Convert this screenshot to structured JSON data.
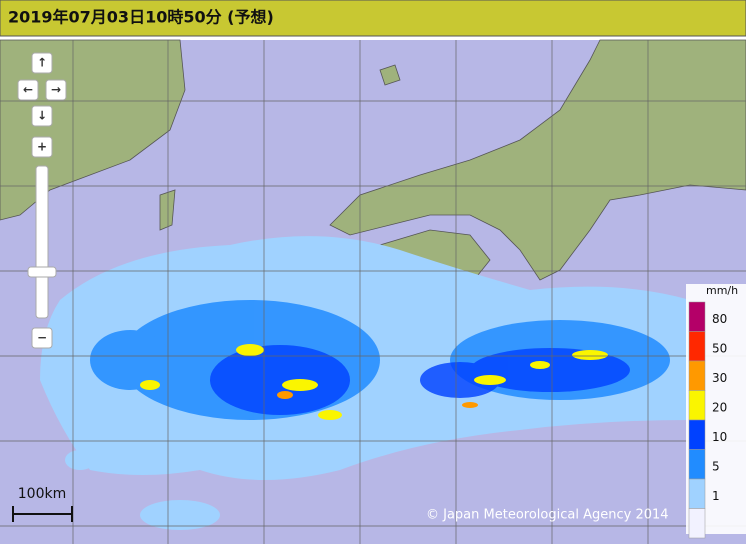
{
  "header": {
    "title": "2019年07月03日10時50分 (予想)"
  },
  "controls": {
    "up": "↑",
    "left": "←",
    "right": "→",
    "down": "↓",
    "zoom_in": "+",
    "zoom_out": "−"
  },
  "legend": {
    "unit": "mm/h",
    "labels": [
      "80",
      "50",
      "30",
      "20",
      "10",
      "5",
      "1"
    ],
    "colors": [
      "#b40068",
      "#ff2800",
      "#ff9900",
      "#faf500",
      "#0041ff",
      "#218cff",
      "#a0d2ff",
      "#f2f2ff"
    ]
  },
  "scale": {
    "label": "100km"
  },
  "copyright": "© Japan Meteorological Agency 2014"
}
